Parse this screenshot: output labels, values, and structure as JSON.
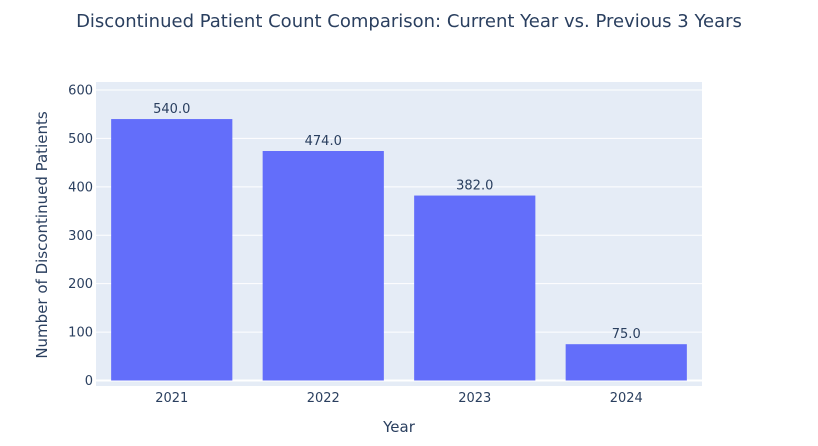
{
  "chart_data": {
    "type": "bar",
    "title": "Discontinued Patient Count Comparison: Current Year vs. Previous 3 Years",
    "xlabel": "Year",
    "ylabel": "Number of Discontinued Patients",
    "categories": [
      "2021",
      "2022",
      "2023",
      "2024"
    ],
    "values": [
      540,
      474,
      382,
      75
    ],
    "value_labels": [
      "540.0",
      "474.0",
      "382.0",
      "75.0"
    ],
    "ylim": [
      0,
      600
    ],
    "yticks": [
      0,
      100,
      200,
      300,
      400,
      500,
      600
    ],
    "ytick_labels": [
      "0",
      "100",
      "200",
      "300",
      "400",
      "500",
      "600"
    ],
    "grid": true,
    "colors": {
      "bar": "#636efa",
      "plot_bg": "#e5ecf6",
      "grid": "#ffffff",
      "text": "#2a3f5f"
    }
  }
}
